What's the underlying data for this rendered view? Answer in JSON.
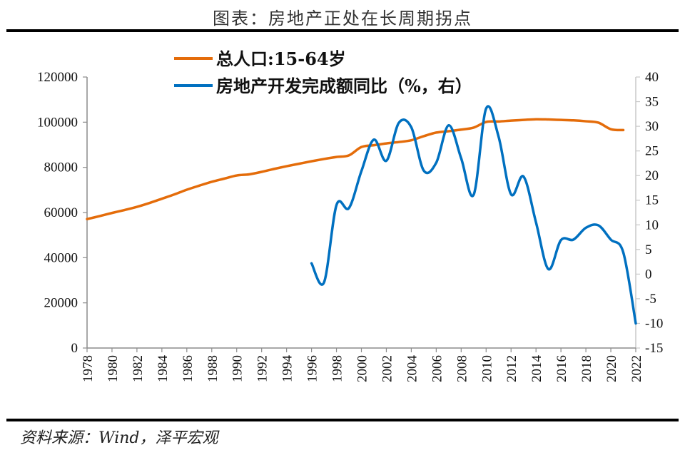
{
  "header": {
    "title": "图表：房地产正处在长周期拐点"
  },
  "footer": {
    "source": "资料来源：Wind，泽平宏观"
  },
  "chart_data": {
    "type": "line",
    "title": "图表：房地产正处在长周期拐点",
    "xlabel": "",
    "ylabel": "",
    "ylabel_right": "",
    "x_range": [
      1978,
      2022
    ],
    "x_ticks": [
      "1978",
      "1980",
      "1982",
      "1984",
      "1986",
      "1988",
      "1990",
      "1992",
      "1994",
      "1996",
      "1998",
      "2000",
      "2002",
      "2004",
      "2006",
      "2008",
      "2010",
      "2012",
      "2014",
      "2016",
      "2018",
      "2020",
      "2022"
    ],
    "ylim_left": [
      0,
      120000
    ],
    "y_ticks_left": [
      "0",
      "20000",
      "40000",
      "60000",
      "80000",
      "100000",
      "120000"
    ],
    "ylim_right": [
      -15,
      40
    ],
    "y_ticks_right": [
      "-15",
      "-10",
      "-5",
      "0",
      "5",
      "10",
      "15",
      "20",
      "25",
      "30",
      "35",
      "40"
    ],
    "grid": false,
    "legend_position": "top-left",
    "series": [
      {
        "name": "总人口:15-64岁",
        "axis": "left",
        "color": "#E46C0A",
        "x": [
          1978,
          1979,
          1980,
          1981,
          1982,
          1983,
          1984,
          1985,
          1986,
          1987,
          1988,
          1989,
          1990,
          1991,
          1992,
          1993,
          1994,
          1995,
          1996,
          1997,
          1998,
          1999,
          2000,
          2001,
          2002,
          2003,
          2004,
          2005,
          2006,
          2007,
          2008,
          2009,
          2010,
          2011,
          2012,
          2013,
          2014,
          2015,
          2016,
          2017,
          2018,
          2019,
          2020,
          2021
        ],
        "values": [
          57100,
          58400,
          59800,
          61100,
          62500,
          64200,
          66100,
          68000,
          70100,
          71900,
          73600,
          75000,
          76400,
          76900,
          78000,
          79300,
          80500,
          81600,
          82700,
          83700,
          84600,
          85300,
          89000,
          89800,
          90600,
          91200,
          92000,
          93800,
          95400,
          96000,
          96700,
          97600,
          100100,
          100300,
          100700,
          101000,
          101300,
          101200,
          101000,
          100800,
          100400,
          99800,
          96900,
          96500
        ]
      },
      {
        "name": "房地产开发完成额同比（%，右）",
        "axis": "right",
        "color": "#0070C0",
        "x": [
          1996,
          1997,
          1998,
          1999,
          2000,
          2001,
          2002,
          2003,
          2004,
          2005,
          2006,
          2007,
          2008,
          2009,
          2010,
          2011,
          2012,
          2013,
          2014,
          2015,
          2016,
          2017,
          2018,
          2019,
          2020,
          2021,
          2022
        ],
        "values": [
          2.2,
          -1.7,
          14.0,
          13.4,
          20.9,
          27.3,
          23.0,
          30.7,
          29.8,
          21.0,
          22.6,
          30.2,
          23.5,
          16.1,
          33.6,
          27.9,
          16.2,
          19.8,
          10.5,
          1.0,
          6.9,
          7.0,
          9.4,
          9.9,
          7.0,
          4.4,
          -10.0
        ]
      }
    ]
  }
}
